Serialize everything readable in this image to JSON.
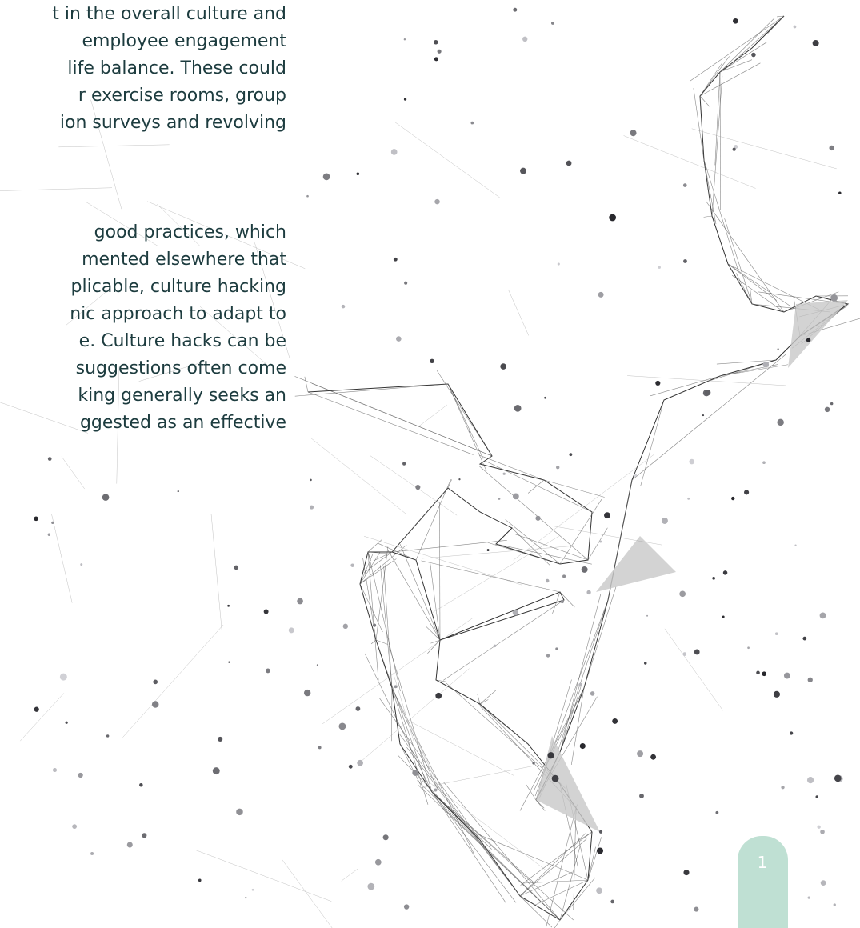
{
  "paragraphs": [
    {
      "lines": [
        "t in the overall culture and",
        "employee engagement",
        "life balance. These could",
        "r exercise rooms, group",
        "ion surveys and revolving"
      ]
    },
    {
      "lines": [
        "good practices, which",
        "mented elsewhere that",
        "plicable, culture hacking",
        "nic approach to adapt to",
        "e. Culture hacks can be",
        "suggestions often come",
        "king generally seeks an",
        "ggested as an effective"
      ]
    }
  ],
  "page_number": "1"
}
